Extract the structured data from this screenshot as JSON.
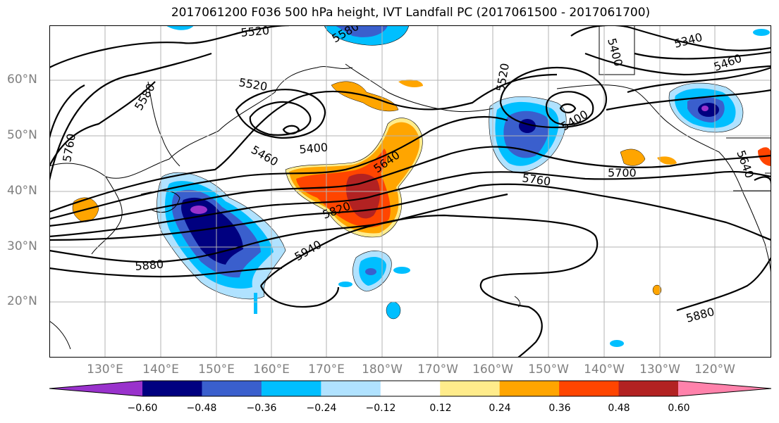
{
  "title": "2017061200 F036 500 hPa height, IVT Landfall PC (2017061500 - 2017061700)",
  "lat_labels": [
    "60°N",
    "50°N",
    "40°N",
    "30°N",
    "20°N"
  ],
  "lon_labels": [
    "130°E",
    "140°E",
    "150°E",
    "160°E",
    "170°E",
    "180°W",
    "170°W",
    "160°W",
    "150°W",
    "140°W",
    "130°W",
    "120°W"
  ],
  "contour_labels": [
    "5520",
    "5580",
    "5520",
    "5580",
    "5760",
    "5460",
    "5400",
    "5640",
    "5820",
    "5940",
    "5880",
    "5520",
    "5400",
    "5760",
    "5700",
    "5340",
    "5460",
    "5400",
    "5640",
    "5880"
  ],
  "colorbar": {
    "ticks": [
      "−0.60",
      "−0.48",
      "−0.36",
      "−0.24",
      "−0.12",
      "0.12",
      "0.24",
      "0.36",
      "0.48",
      "0.60"
    ],
    "colors": [
      "#9932cc",
      "#000080",
      "#3a5fcd",
      "#00bfff",
      "#b0e2ff",
      "#ffffff",
      "#ffec8b",
      "#ffa500",
      "#ff4500",
      "#b22222",
      "#ff82ab"
    ]
  }
}
